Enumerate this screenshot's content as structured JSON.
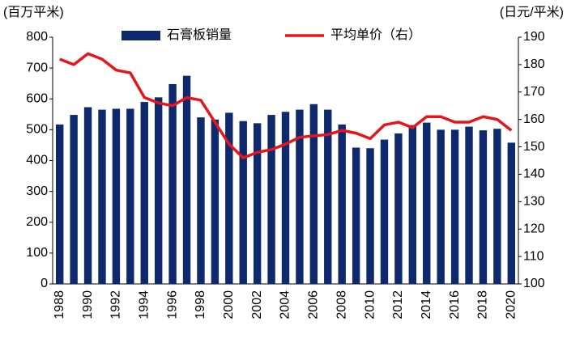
{
  "chart_data": {
    "type": "bar-line",
    "y_label": "(百万平米)",
    "y2_label": "(日元/平米)",
    "categories": [
      "1988",
      null,
      "1990",
      null,
      "1992",
      null,
      "1994",
      null,
      "1996",
      null,
      "1998",
      null,
      "2000",
      null,
      "2002",
      null,
      "2004",
      null,
      "2006",
      null,
      "2008",
      null,
      "2010",
      null,
      "2012",
      null,
      "2014",
      null,
      "2016",
      null,
      "2018",
      null,
      "2020"
    ],
    "series": [
      {
        "name": "石膏板销量",
        "color": "#0e2a6d",
        "type": "bar",
        "values": [
          517,
          548,
          573,
          565,
          568,
          568,
          590,
          605,
          648,
          675,
          540,
          533,
          555,
          528,
          521,
          548,
          558,
          565,
          583,
          565,
          517,
          442,
          440,
          468,
          488,
          515,
          523,
          500,
          500,
          510,
          498,
          503,
          458
        ]
      },
      {
        "name": "平均单价（右）",
        "color": "#e8141c",
        "type": "line",
        "axis": "y2",
        "values": [
          182,
          180,
          184,
          182,
          178,
          177,
          168,
          166,
          165,
          168,
          167,
          159,
          151,
          146,
          148,
          149,
          151,
          153.5,
          154,
          154.5,
          156,
          155,
          153,
          158,
          159,
          157,
          161,
          161,
          159,
          159,
          161,
          160,
          156
        ]
      }
    ],
    "ylim": [
      0,
      800
    ],
    "yticks": [
      0,
      100,
      200,
      300,
      400,
      500,
      600,
      700,
      800
    ],
    "y2lim": [
      100,
      190
    ],
    "y2ticks": [
      100,
      110,
      120,
      130,
      140,
      150,
      160,
      170,
      180,
      190
    ]
  }
}
